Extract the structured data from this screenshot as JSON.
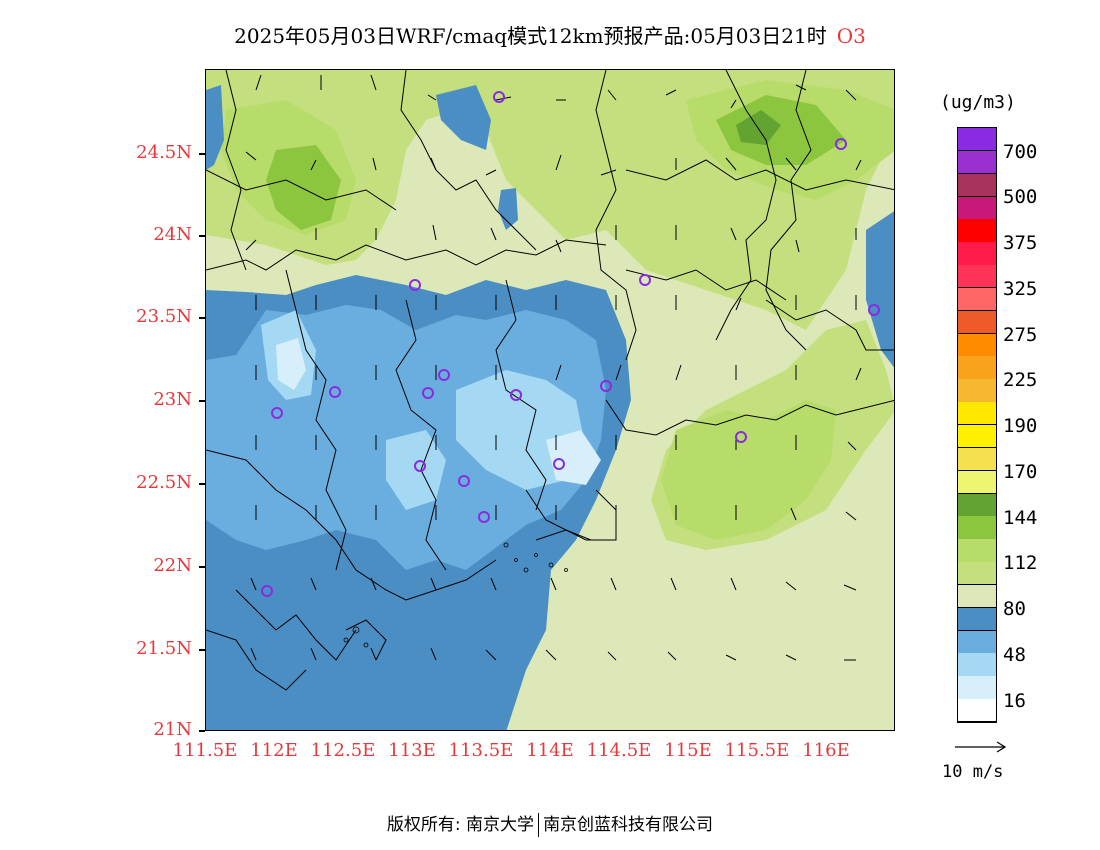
{
  "title": {
    "text": "2025年05月03日WRF/cmaq模式12km预报产品:05月03日21时",
    "species": "O3"
  },
  "map": {
    "lat_ticks": [
      "24.5N",
      "24N",
      "23.5N",
      "23N",
      "22.5N",
      "22N",
      "21.5N",
      "21N"
    ],
    "lon_ticks": [
      "111.5E",
      "112E",
      "112.5E",
      "113E",
      "113.5E",
      "114E",
      "114.5E",
      "115E",
      "115.5E",
      "116E"
    ]
  },
  "legend": {
    "unit": "(ug/m3)",
    "labels": [
      "700",
      "500",
      "375",
      "325",
      "275",
      "225",
      "190",
      "170",
      "144",
      "112",
      "80",
      "48",
      "16"
    ],
    "colors": [
      "#8a2be2",
      "#9b30d0",
      "#a8325e",
      "#c8187a",
      "#ff0000",
      "#ff1a4a",
      "#ff3355",
      "#ff6666",
      "#f05a28",
      "#ff8c00",
      "#f8a31a",
      "#f5b830",
      "#ffe800",
      "#fff100",
      "#f5e050",
      "#eef570",
      "#63a332",
      "#8cc63f",
      "#b7dc6a",
      "#c4df7e",
      "#dde8b8",
      "#4a8ec4",
      "#6aaedf",
      "#a5d8f3",
      "#d7effa",
      "#ffffff"
    ]
  },
  "wind_reference": {
    "label": "10 m/s"
  },
  "footer": {
    "copyright": "版权所有: 南京大学",
    "company": "南京创蓝科技有限公司"
  },
  "colors": {
    "tick_label": "#e8383a",
    "site_marker": "#8a2be2",
    "ocean": "#dde8b8"
  }
}
